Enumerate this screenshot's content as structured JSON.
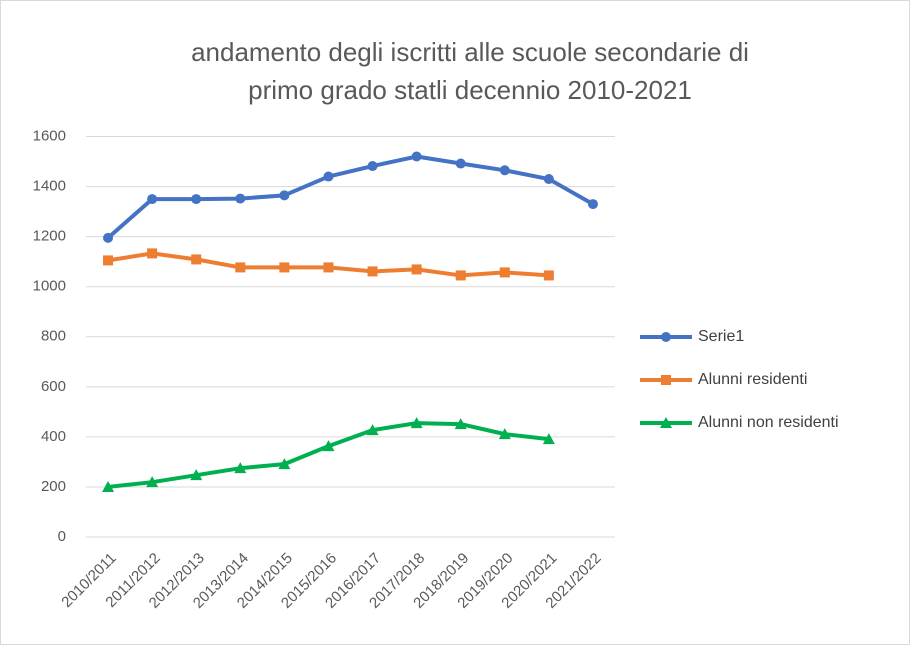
{
  "chart_data": {
    "type": "line",
    "title": [
      "andamento degli iscritti alle scuole secondarie di",
      "primo grado statli decennio 2010-2021"
    ],
    "categories": [
      "2010/2011",
      "2011/2012",
      "2012/2013",
      "2013/2014",
      "2014/2015",
      "2015/2016",
      "2016/2017",
      "2017/2018",
      "2018/2019",
      "2019/2020",
      "2020/2021",
      "2021/2022"
    ],
    "series": [
      {
        "name": "Serie1",
        "color": "#4472c4",
        "marker": "circle",
        "values": [
          1195,
          1350,
          1350,
          1352,
          1365,
          1440,
          1482,
          1520,
          1492,
          1465,
          1430,
          1330
        ]
      },
      {
        "name": "Alunni residenti",
        "color": "#ed7d31",
        "marker": "square",
        "values": [
          1105,
          1133,
          1109,
          1077,
          1077,
          1077,
          1061,
          1069,
          1045,
          1057,
          1045,
          null
        ]
      },
      {
        "name": "Alunni non residenti",
        "color": "#00b050",
        "marker": "triangle",
        "values": [
          200,
          219,
          247,
          275,
          291,
          363,
          427,
          455,
          451,
          411,
          391,
          null
        ]
      }
    ],
    "ylim": [
      0,
      1600
    ],
    "yticks": [
      0,
      200,
      400,
      600,
      800,
      1000,
      1200,
      1400,
      1600
    ],
    "grid": true,
    "legend": "right"
  }
}
